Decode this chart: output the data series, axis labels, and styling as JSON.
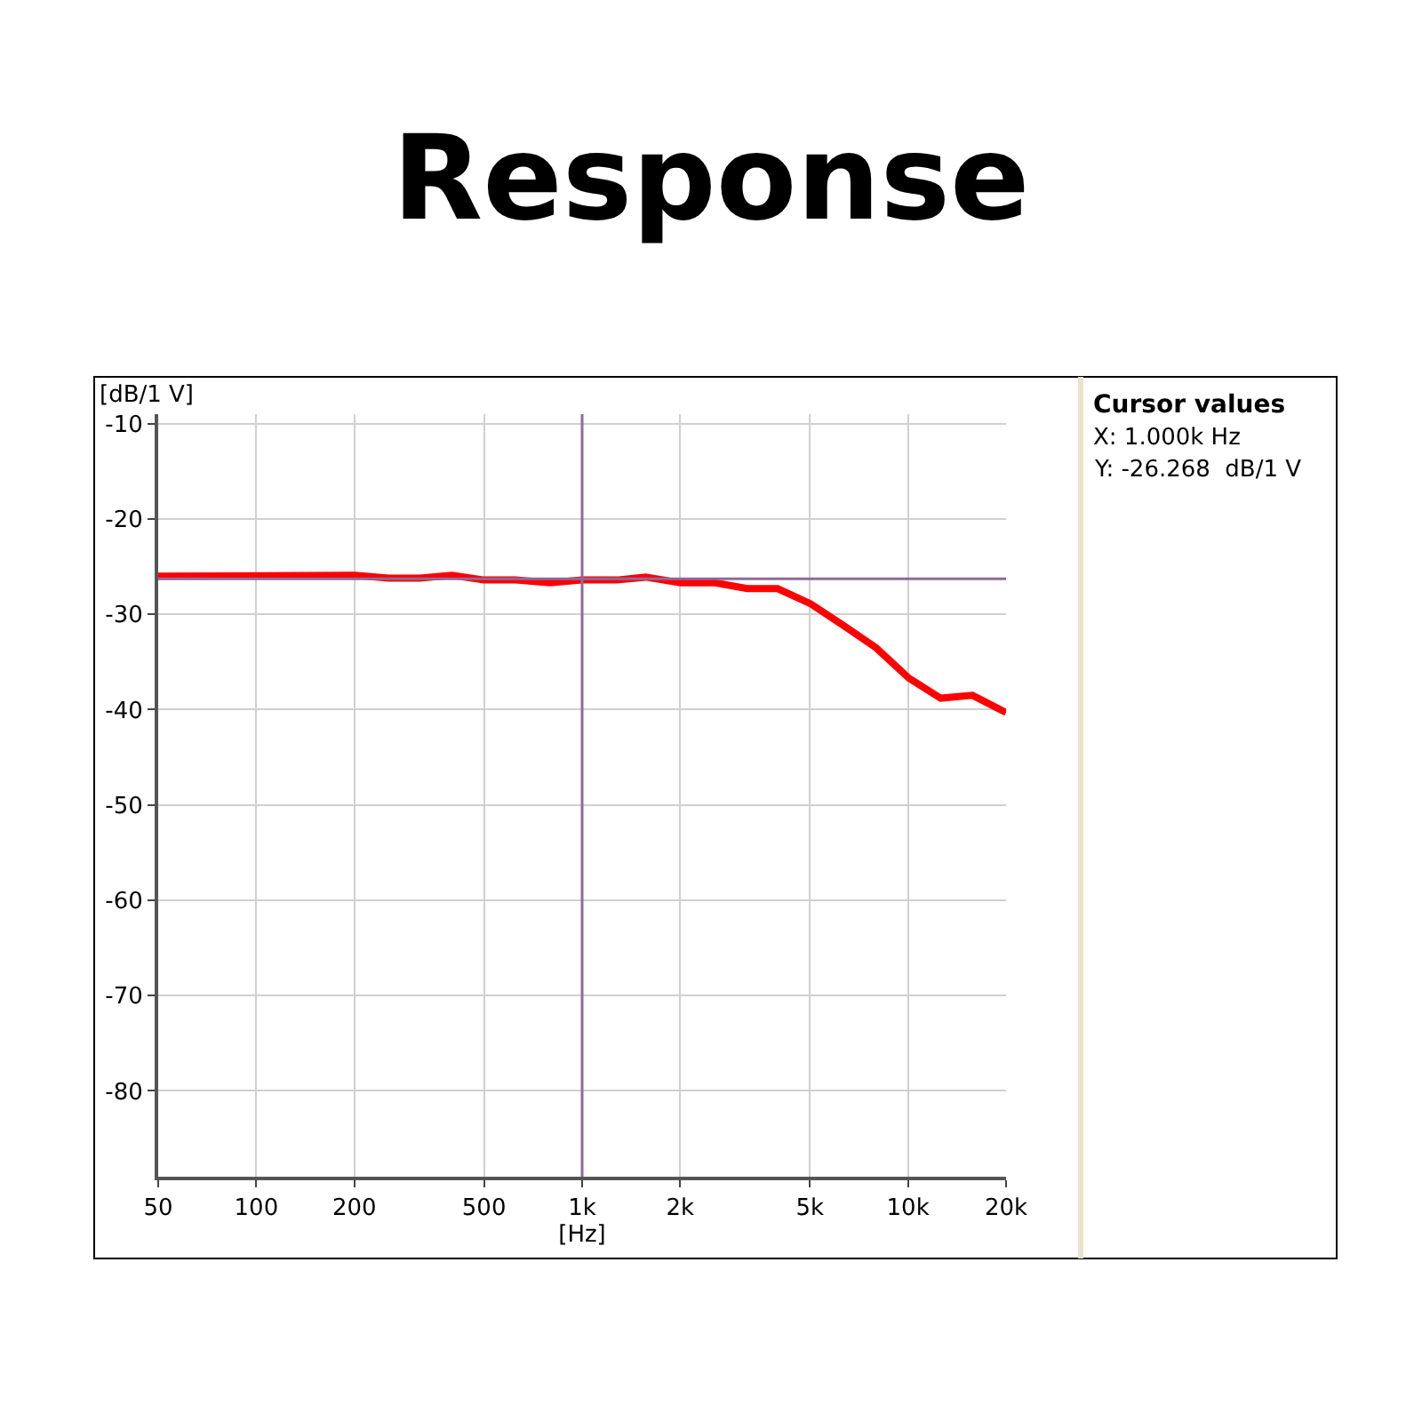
{
  "chart_data": {
    "type": "line",
    "title": "Response",
    "xlabel": "[Hz]",
    "ylabel": "[dB/1 V]",
    "log": "x",
    "x": [
      50,
      200,
      255,
      318,
      399,
      500,
      625,
      797,
      1000,
      1278,
      1566,
      2005,
      2563,
      3210,
      3980,
      5030,
      6420,
      7970,
      10070,
      12600,
      15770,
      20000
    ],
    "series": [
      {
        "color": "#ff0000",
        "values": [
          -26.0,
          -25.9,
          -26.2,
          -26.2,
          -25.9,
          -26.4,
          -26.4,
          -26.7,
          -26.4,
          -26.4,
          -26.1,
          -26.7,
          -26.7,
          -27.3,
          -27.3,
          -28.9,
          -31.3,
          -33.5,
          -36.7,
          -38.8,
          -38.5,
          -40.3
        ]
      }
    ],
    "xlim": [
      50,
      20000
    ],
    "xticks": [
      50,
      100,
      200,
      500,
      {
        "value": 1000,
        "label": "1k"
      },
      {
        "value": 2000,
        "label": "2k"
      },
      {
        "value": 5000,
        "label": "5k"
      },
      {
        "value": 10000,
        "label": "10k"
      },
      {
        "value": 20000,
        "label": "20k"
      }
    ],
    "ylim": [
      -89,
      -9
    ],
    "yticks": [
      -10,
      -20,
      -30,
      -40,
      -50,
      -60,
      -70,
      -80
    ],
    "grid": true,
    "marker": "none",
    "line_style": "solid",
    "ref_lines": [
      {
        "axis": "x",
        "value": 1000,
        "color": "#8e6a9a"
      },
      {
        "axis": "y",
        "value": -26.268,
        "color": "#8e6a9a"
      }
    ],
    "annotations": [
      "Cursor values",
      "X: 1.000k Hz",
      "Y: -26.268  dB/1 V"
    ]
  }
}
